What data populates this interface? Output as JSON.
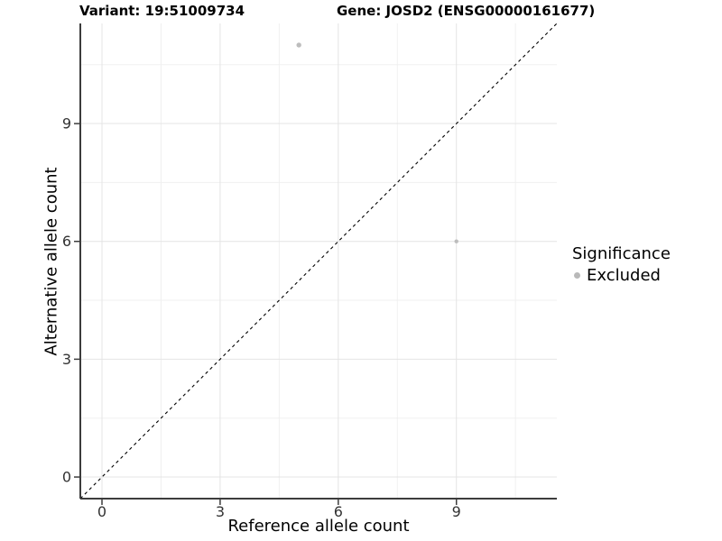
{
  "chart_data": {
    "type": "scatter",
    "title_left": "Variant: 19:51009734",
    "title_right": "Gene: JOSD2 (ENSG00000161677)",
    "xlabel": "Reference allele count",
    "ylabel": "Alternative allele count",
    "xlim": [
      -0.55,
      11.55
    ],
    "ylim": [
      -0.55,
      11.55
    ],
    "xticks": [
      0,
      3,
      6,
      9
    ],
    "yticks": [
      0,
      3,
      6,
      9
    ],
    "minor_ticks": [
      1.5,
      4.5,
      7.5,
      10.5
    ],
    "grid": "major+minor",
    "legend_position": "right",
    "identity_line": {
      "style": "dashed",
      "color": "#000000",
      "slope": 1,
      "intercept": 0
    },
    "series": [
      {
        "name": "Excluded",
        "color": "#bdbdbd",
        "points": [
          {
            "x": 5,
            "y": 11,
            "r": 2.7
          },
          {
            "x": 9,
            "y": 6,
            "r": 2.2
          }
        ]
      }
    ],
    "legend": {
      "title": "Significance",
      "items": [
        {
          "label": "Excluded",
          "color": "#b9b9b9",
          "marker": "circle"
        }
      ]
    }
  },
  "colors": {
    "background": "#ffffff",
    "grid_major": "#e4e4e4",
    "grid_minor": "#f0f0f0",
    "axis_line": "#3c3c3c",
    "tick_label": "#333333",
    "title_text": "#000000"
  }
}
